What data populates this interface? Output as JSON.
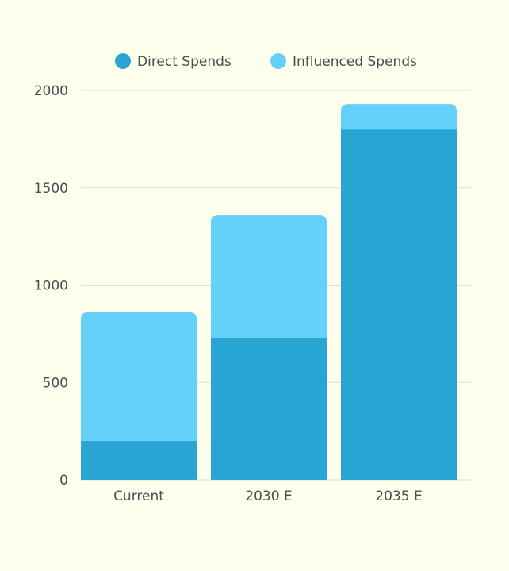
{
  "chart_data": {
    "type": "bar",
    "stacked": true,
    "categories": [
      "Current",
      "2030 E",
      "2035 E"
    ],
    "series": [
      {
        "name": "Direct Spends",
        "values": [
          200,
          730,
          1800
        ],
        "color": "#28a5d3"
      },
      {
        "name": "Influenced Spends",
        "values": [
          660,
          630,
          130
        ],
        "color": "#63d1f9"
      }
    ],
    "ylim": [
      0,
      2000
    ],
    "yticks": [
      "0",
      "500",
      "1000",
      "1500",
      "2000"
    ],
    "grid": true,
    "legend_position": "top-center",
    "title": "",
    "xlabel": "",
    "ylabel": ""
  },
  "colors": {
    "background": "#fdfeec",
    "axis_text": "#4b4e52",
    "grid": "#dcdfd2"
  }
}
